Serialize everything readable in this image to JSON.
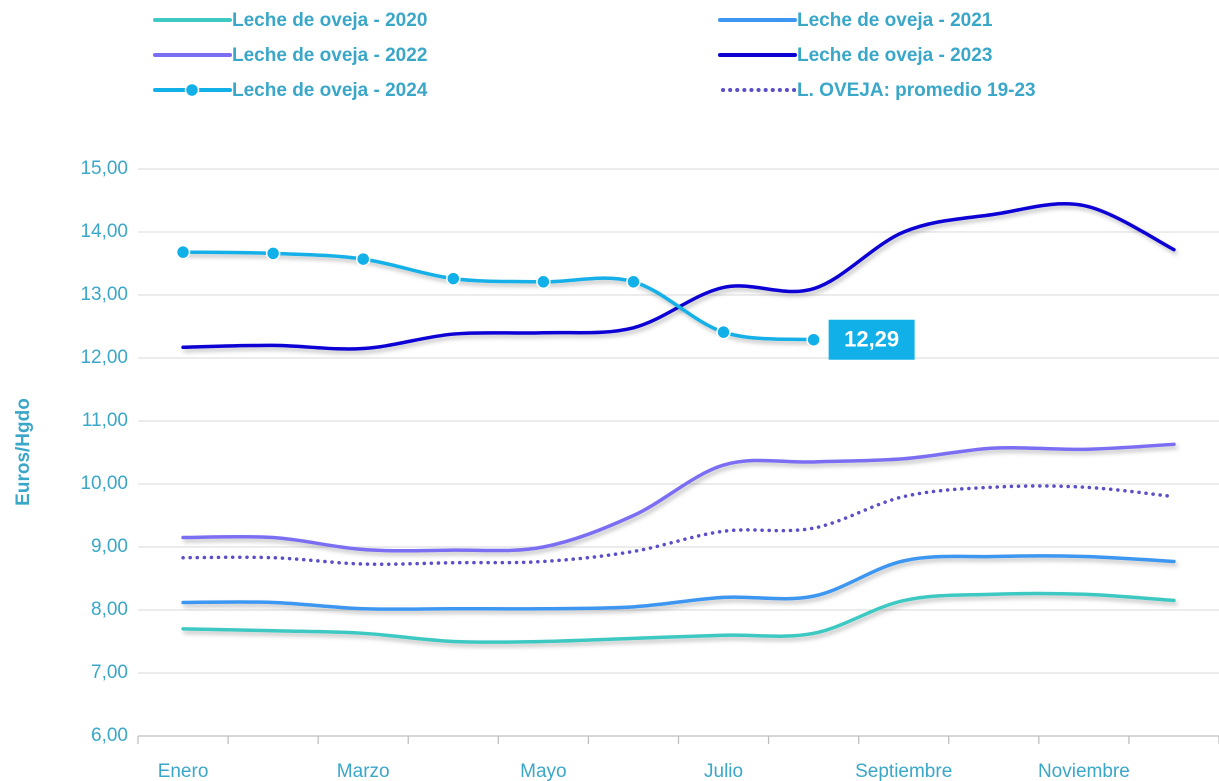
{
  "chart_data": {
    "type": "line",
    "y_label": "Euros/Hgdo",
    "categories": [
      "Enero",
      null,
      "Marzo",
      null,
      "Mayo",
      null,
      "Julio",
      null,
      "Septiembre",
      null,
      "Noviembre",
      null
    ],
    "ylim": [
      6,
      15
    ],
    "yticks": [
      {
        "value": 6,
        "label": "6,00"
      },
      {
        "value": 7,
        "label": "7,00"
      },
      {
        "value": 8,
        "label": "8,00"
      },
      {
        "value": 9,
        "label": "9,00"
      },
      {
        "value": 10,
        "label": "10,00"
      },
      {
        "value": 11,
        "label": "11,00"
      },
      {
        "value": 12,
        "label": "12,00"
      },
      {
        "value": 13,
        "label": "13,00"
      },
      {
        "value": 14,
        "label": "14,00"
      },
      {
        "value": 15,
        "label": "15,00"
      }
    ],
    "grid": true,
    "legend": "top",
    "series": [
      {
        "name": "Leche de oveja - 2020",
        "color": "#3ec9c2",
        "values": [
          7.7,
          7.67,
          7.63,
          7.5,
          7.5,
          7.55,
          7.6,
          7.63,
          8.15,
          8.25,
          8.25,
          8.15
        ]
      },
      {
        "name": "Leche de oveja - 2021",
        "color": "#3d96f0",
        "values": [
          8.12,
          8.12,
          8.02,
          8.02,
          8.02,
          8.05,
          8.2,
          8.22,
          8.78,
          8.85,
          8.85,
          8.77
        ]
      },
      {
        "name": "Leche de oveja - 2022",
        "color": "#7b6ef2",
        "values": [
          9.15,
          9.15,
          8.96,
          8.95,
          9.0,
          9.5,
          10.3,
          10.35,
          10.4,
          10.57,
          10.55,
          10.63
        ]
      },
      {
        "name": "Leche de oveja - 2023",
        "color": "#0a00d4",
        "values": [
          12.17,
          12.2,
          12.15,
          12.38,
          12.4,
          12.48,
          13.12,
          13.1,
          14.0,
          14.28,
          14.42,
          13.72
        ]
      },
      {
        "name": "Leche de oveja - 2024",
        "color": "#12b0e8",
        "marker": "circle",
        "values": [
          13.68,
          13.66,
          13.57,
          13.26,
          13.21,
          13.21,
          12.41,
          12.29,
          null,
          null,
          null,
          null
        ],
        "value_labels": [
          null,
          null,
          null,
          null,
          null,
          null,
          null,
          "12,29",
          null,
          null,
          null,
          null
        ]
      },
      {
        "name": "L. OVEJA: promedio 19-23",
        "color": "#5a4fc8",
        "dash": "dotted",
        "values": [
          8.83,
          8.83,
          8.73,
          8.75,
          8.77,
          8.93,
          9.25,
          9.3,
          9.8,
          9.95,
          9.95,
          9.8
        ]
      }
    ]
  }
}
